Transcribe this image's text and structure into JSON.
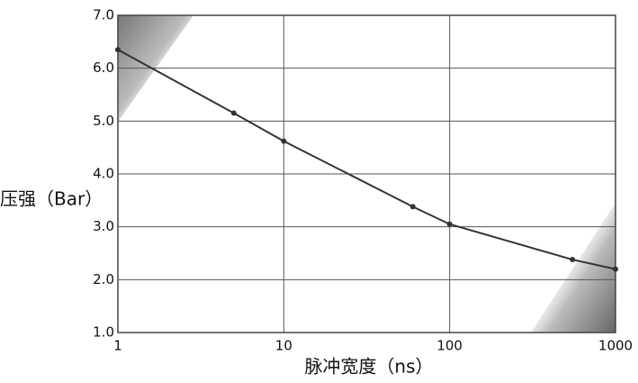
{
  "chart_data": {
    "type": "line",
    "xlabel": "脉冲宽度（ns）",
    "ylabel": "压强（Bar）",
    "x": [
      1,
      5,
      10,
      60,
      100,
      550,
      1000
    ],
    "series": [
      {
        "name": null,
        "color": "#333333",
        "values": [
          6.35,
          5.15,
          4.62,
          3.38,
          3.05,
          2.38,
          2.2
        ]
      }
    ],
    "xscale": "log",
    "xlim": [
      1,
      1000
    ],
    "xticks": [
      1,
      10,
      100,
      1000
    ],
    "ylim": [
      1,
      7
    ],
    "yticks": [
      {
        "value": 1,
        "label": "1.0"
      },
      {
        "value": 2,
        "label": "2.0"
      },
      {
        "value": 3,
        "label": "3.0"
      },
      {
        "value": 4,
        "label": "4.0"
      },
      {
        "value": 5,
        "label": "5.0"
      },
      {
        "value": 6,
        "label": "6.0"
      },
      {
        "value": 7,
        "label": "7.0"
      }
    ],
    "grid": true
  }
}
